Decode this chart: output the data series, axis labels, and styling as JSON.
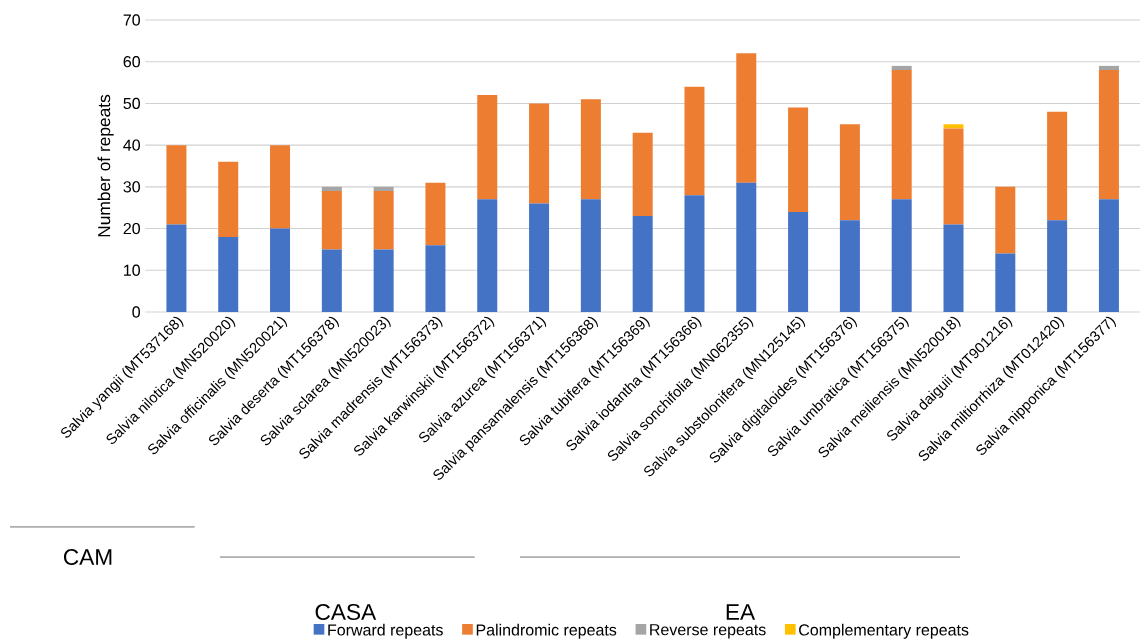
{
  "chart_data": {
    "type": "bar",
    "stacked": true,
    "ylabel": "Number of repeats",
    "categories": [
      "Salvia yangii (MT537168)",
      "Salvia nilotica (MN520020)",
      "Salvia officinalis (MN520021)",
      "Salvia deserta (MT156378)",
      "Salvia sclarea (MN520023)",
      "Salvia madrensis (MT156373)",
      "Salvia karwinskii (MT156372)",
      "Salvia azurea (MT156371)",
      "Salvia pansamalensis (MT156368)",
      "Salvia tubifera (MT156369)",
      "Salvia iodantha (MT156366)",
      "Salvia sonchifolia (MN062355)",
      "Salvia substolonifera (MN125145)",
      "Salvia digitaloides (MT156376)",
      "Salvia umbratica (MT156375)",
      "Salvia meiliensis (MN520018)",
      "Salvia daiguii (MT901216)",
      "Salvia miltiorrhiza (MT012420)",
      "Salvia nipponica (MT156377)"
    ],
    "series": [
      {
        "name": "Forward repeats",
        "color": "#4472c4",
        "values": [
          21,
          18,
          20,
          15,
          15,
          16,
          27,
          26,
          27,
          23,
          28,
          31,
          24,
          22,
          27,
          21,
          14,
          22,
          27
        ]
      },
      {
        "name": "Palindromic repeats",
        "color": "#ed7d31",
        "values": [
          19,
          18,
          20,
          14,
          14,
          15,
          25,
          24,
          24,
          20,
          26,
          31,
          25,
          23,
          31,
          23,
          16,
          26,
          31
        ]
      },
      {
        "name": "Reverse repeats",
        "color": "#a5a5a5",
        "values": [
          0,
          0,
          0,
          1,
          1,
          0,
          0,
          0,
          0,
          0,
          0,
          0,
          0,
          0,
          1,
          0,
          0,
          0,
          1
        ]
      },
      {
        "name": "Complementary repeats",
        "color": "#ffc000",
        "values": [
          0,
          0,
          0,
          0,
          0,
          0,
          0,
          0,
          0,
          0,
          0,
          0,
          0,
          0,
          0,
          1,
          0,
          0,
          0
        ]
      }
    ],
    "ylim": [
      0,
      70
    ],
    "yticks": [
      0,
      10,
      20,
      30,
      40,
      50,
      60,
      70
    ],
    "grid": "y",
    "legend": "bottom",
    "annotations": [
      "CAM",
      "CASA",
      "EA"
    ]
  }
}
